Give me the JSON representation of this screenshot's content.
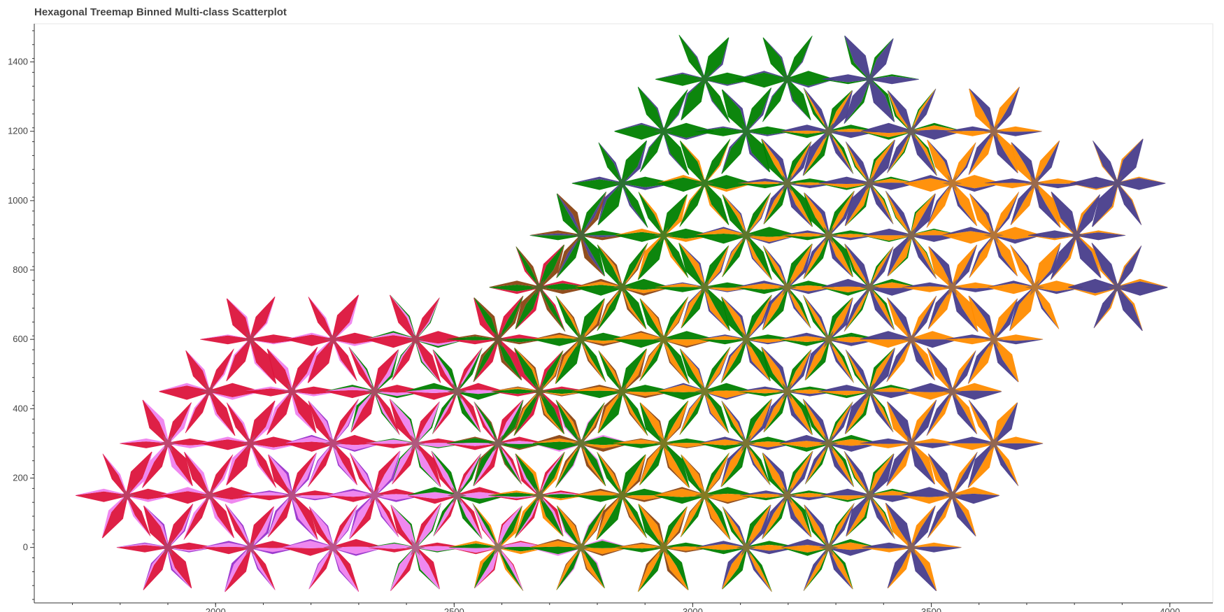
{
  "chart_data": {
    "type": "scatter",
    "title": "Hexagonal Treemap Binned Multi-class Scatterplot",
    "xlabel": "",
    "ylabel": "",
    "xlim": [
      1620,
      4090
    ],
    "ylim": [
      -160,
      1510
    ],
    "x_ticks": [
      2000,
      2500,
      3000,
      3500,
      4000
    ],
    "y_ticks": [
      0,
      200,
      400,
      600,
      800,
      1000,
      1200,
      1400
    ],
    "grid": false,
    "legend": "none",
    "hex_grid": {
      "x_spacing": 173.2,
      "row_height": 150,
      "y_scale": 0.5,
      "rows_start_y": 0,
      "rows": 10,
      "odd_row_x_offset": 86.6
    },
    "class_colors": {
      "A": "#dc143c",
      "B": "#ee82ee",
      "C": "#9932cc",
      "D": "#008000",
      "E": "#ff8c00",
      "F": "#483d8b",
      "G": "#8b4513"
    },
    "center_color_note": "center star color blends the class mix of each bin",
    "bins": [
      {
        "x": 1900,
        "y": 0,
        "mix": {
          "A": 0.75,
          "B": 0.15,
          "C": 0.1
        }
      },
      {
        "x": 2073,
        "y": 0,
        "mix": {
          "A": 0.55,
          "B": 0.3,
          "C": 0.15
        }
      },
      {
        "x": 2246,
        "y": 0,
        "mix": {
          "A": 0.45,
          "B": 0.45,
          "C": 0.1
        }
      },
      {
        "x": 2419,
        "y": 0,
        "mix": {
          "A": 0.35,
          "B": 0.55,
          "D": 0.1
        }
      },
      {
        "x": 2592,
        "y": 0,
        "mix": {
          "B": 0.35,
          "D": 0.35,
          "E": 0.2,
          "A": 0.1
        }
      },
      {
        "x": 2766,
        "y": 0,
        "mix": {
          "D": 0.45,
          "E": 0.35,
          "G": 0.1,
          "B": 0.1
        }
      },
      {
        "x": 2939,
        "y": 0,
        "mix": {
          "D": 0.4,
          "E": 0.45,
          "G": 0.15
        }
      },
      {
        "x": 3112,
        "y": 0,
        "mix": {
          "E": 0.45,
          "D": 0.3,
          "F": 0.25
        }
      },
      {
        "x": 3285,
        "y": 0,
        "mix": {
          "E": 0.45,
          "F": 0.35,
          "D": 0.2
        }
      },
      {
        "x": 3458,
        "y": 0,
        "mix": {
          "F": 0.6,
          "E": 0.4
        }
      },
      {
        "x": 1814,
        "y": 150,
        "mix": {
          "A": 0.8,
          "B": 0.2
        }
      },
      {
        "x": 1987,
        "y": 150,
        "mix": {
          "A": 0.75,
          "B": 0.25
        }
      },
      {
        "x": 2160,
        "y": 150,
        "mix": {
          "A": 0.5,
          "B": 0.35,
          "C": 0.15
        }
      },
      {
        "x": 2333,
        "y": 150,
        "mix": {
          "A": 0.4,
          "B": 0.45,
          "C": 0.15
        }
      },
      {
        "x": 2506,
        "y": 150,
        "mix": {
          "B": 0.4,
          "A": 0.3,
          "D": 0.3
        }
      },
      {
        "x": 2679,
        "y": 150,
        "mix": {
          "D": 0.45,
          "A": 0.2,
          "B": 0.15,
          "E": 0.2
        }
      },
      {
        "x": 2852,
        "y": 150,
        "mix": {
          "D": 0.5,
          "E": 0.35,
          "G": 0.15
        }
      },
      {
        "x": 3025,
        "y": 150,
        "mix": {
          "D": 0.4,
          "E": 0.5,
          "G": 0.1
        }
      },
      {
        "x": 3198,
        "y": 150,
        "mix": {
          "E": 0.45,
          "D": 0.25,
          "F": 0.3
        }
      },
      {
        "x": 3371,
        "y": 150,
        "mix": {
          "F": 0.5,
          "E": 0.35,
          "D": 0.15
        }
      },
      {
        "x": 3544,
        "y": 150,
        "mix": {
          "F": 0.6,
          "E": 0.4
        }
      },
      {
        "x": 1900,
        "y": 300,
        "mix": {
          "A": 0.7,
          "B": 0.3
        }
      },
      {
        "x": 2073,
        "y": 300,
        "mix": {
          "A": 0.8,
          "B": 0.2
        }
      },
      {
        "x": 2246,
        "y": 300,
        "mix": {
          "A": 0.6,
          "B": 0.3,
          "C": 0.1
        }
      },
      {
        "x": 2419,
        "y": 300,
        "mix": {
          "A": 0.45,
          "B": 0.45,
          "D": 0.1
        }
      },
      {
        "x": 2592,
        "y": 300,
        "mix": {
          "D": 0.35,
          "A": 0.3,
          "B": 0.25,
          "G": 0.1
        }
      },
      {
        "x": 2766,
        "y": 300,
        "mix": {
          "D": 0.5,
          "E": 0.2,
          "G": 0.2,
          "B": 0.1
        }
      },
      {
        "x": 2939,
        "y": 300,
        "mix": {
          "D": 0.45,
          "E": 0.45,
          "G": 0.1
        }
      },
      {
        "x": 3112,
        "y": 300,
        "mix": {
          "E": 0.45,
          "D": 0.35,
          "F": 0.2
        }
      },
      {
        "x": 3285,
        "y": 300,
        "mix": {
          "E": 0.4,
          "F": 0.35,
          "D": 0.25
        }
      },
      {
        "x": 3458,
        "y": 300,
        "mix": {
          "F": 0.55,
          "E": 0.45
        }
      },
      {
        "x": 3631,
        "y": 300,
        "mix": {
          "F": 0.5,
          "E": 0.5
        }
      },
      {
        "x": 1987,
        "y": 450,
        "mix": {
          "A": 0.85,
          "B": 0.15
        }
      },
      {
        "x": 2160,
        "y": 450,
        "mix": {
          "A": 0.8,
          "B": 0.2
        }
      },
      {
        "x": 2333,
        "y": 450,
        "mix": {
          "A": 0.6,
          "B": 0.25,
          "D": 0.15
        }
      },
      {
        "x": 2506,
        "y": 450,
        "mix": {
          "A": 0.4,
          "D": 0.35,
          "B": 0.25
        }
      },
      {
        "x": 2679,
        "y": 450,
        "mix": {
          "D": 0.5,
          "A": 0.25,
          "E": 0.15,
          "G": 0.1
        }
      },
      {
        "x": 2852,
        "y": 450,
        "mix": {
          "D": 0.55,
          "E": 0.3,
          "G": 0.15
        }
      },
      {
        "x": 3025,
        "y": 450,
        "mix": {
          "D": 0.45,
          "E": 0.45,
          "F": 0.1
        }
      },
      {
        "x": 3198,
        "y": 450,
        "mix": {
          "E": 0.45,
          "D": 0.3,
          "F": 0.25
        }
      },
      {
        "x": 3371,
        "y": 450,
        "mix": {
          "F": 0.45,
          "E": 0.35,
          "D": 0.2
        }
      },
      {
        "x": 3544,
        "y": 450,
        "mix": {
          "F": 0.55,
          "E": 0.45
        }
      },
      {
        "x": 2073,
        "y": 600,
        "mix": {
          "A": 0.9,
          "B": 0.1
        }
      },
      {
        "x": 2246,
        "y": 600,
        "mix": {
          "A": 0.85,
          "B": 0.15
        }
      },
      {
        "x": 2419,
        "y": 600,
        "mix": {
          "A": 0.75,
          "B": 0.15,
          "D": 0.1
        }
      },
      {
        "x": 2592,
        "y": 600,
        "mix": {
          "A": 0.4,
          "D": 0.4,
          "G": 0.2
        }
      },
      {
        "x": 2766,
        "y": 600,
        "mix": {
          "D": 0.6,
          "E": 0.25,
          "G": 0.15
        }
      },
      {
        "x": 2939,
        "y": 600,
        "mix": {
          "D": 0.5,
          "E": 0.4,
          "G": 0.1
        }
      },
      {
        "x": 3112,
        "y": 600,
        "mix": {
          "D": 0.45,
          "E": 0.4,
          "F": 0.15
        }
      },
      {
        "x": 3285,
        "y": 600,
        "mix": {
          "E": 0.45,
          "D": 0.3,
          "F": 0.25
        }
      },
      {
        "x": 3458,
        "y": 600,
        "mix": {
          "F": 0.5,
          "E": 0.5
        }
      },
      {
        "x": 3631,
        "y": 600,
        "mix": {
          "E": 0.65,
          "F": 0.35
        }
      },
      {
        "x": 2679,
        "y": 750,
        "mix": {
          "D": 0.5,
          "G": 0.3,
          "A": 0.2
        }
      },
      {
        "x": 2852,
        "y": 750,
        "mix": {
          "D": 0.65,
          "E": 0.2,
          "G": 0.15
        }
      },
      {
        "x": 3025,
        "y": 750,
        "mix": {
          "D": 0.55,
          "E": 0.35,
          "F": 0.1
        }
      },
      {
        "x": 3198,
        "y": 750,
        "mix": {
          "E": 0.45,
          "D": 0.35,
          "F": 0.2
        }
      },
      {
        "x": 3371,
        "y": 750,
        "mix": {
          "F": 0.45,
          "E": 0.35,
          "D": 0.2
        }
      },
      {
        "x": 3544,
        "y": 750,
        "mix": {
          "E": 0.6,
          "F": 0.4
        }
      },
      {
        "x": 3717,
        "y": 750,
        "mix": {
          "E": 0.8,
          "F": 0.2
        }
      },
      {
        "x": 3890,
        "y": 750,
        "mix": {
          "F": 0.85,
          "E": 0.15
        }
      },
      {
        "x": 2766,
        "y": 900,
        "mix": {
          "D": 0.5,
          "G": 0.3,
          "F": 0.2
        }
      },
      {
        "x": 2939,
        "y": 900,
        "mix": {
          "D": 0.75,
          "E": 0.25
        }
      },
      {
        "x": 3112,
        "y": 900,
        "mix": {
          "D": 0.6,
          "E": 0.3,
          "F": 0.1
        }
      },
      {
        "x": 3285,
        "y": 900,
        "mix": {
          "E": 0.4,
          "D": 0.35,
          "F": 0.25
        }
      },
      {
        "x": 3458,
        "y": 900,
        "mix": {
          "F": 0.5,
          "E": 0.4,
          "D": 0.1
        }
      },
      {
        "x": 3631,
        "y": 900,
        "mix": {
          "E": 0.75,
          "F": 0.25
        }
      },
      {
        "x": 3804,
        "y": 900,
        "mix": {
          "F": 0.8,
          "E": 0.2
        }
      },
      {
        "x": 2852,
        "y": 1050,
        "mix": {
          "D": 0.8,
          "F": 0.2
        }
      },
      {
        "x": 3025,
        "y": 1050,
        "mix": {
          "D": 0.85,
          "E": 0.15
        }
      },
      {
        "x": 3198,
        "y": 1050,
        "mix": {
          "D": 0.4,
          "E": 0.3,
          "F": 0.3
        }
      },
      {
        "x": 3371,
        "y": 1050,
        "mix": {
          "F": 0.55,
          "E": 0.3,
          "D": 0.15
        }
      },
      {
        "x": 3544,
        "y": 1050,
        "mix": {
          "E": 0.8,
          "F": 0.2
        }
      },
      {
        "x": 3717,
        "y": 1050,
        "mix": {
          "E": 0.55,
          "F": 0.45
        }
      },
      {
        "x": 3890,
        "y": 1050,
        "mix": {
          "F": 0.9,
          "E": 0.1
        }
      },
      {
        "x": 2939,
        "y": 1200,
        "mix": {
          "D": 0.9,
          "F": 0.1
        }
      },
      {
        "x": 3112,
        "y": 1200,
        "mix": {
          "D": 0.85,
          "F": 0.15
        }
      },
      {
        "x": 3285,
        "y": 1200,
        "mix": {
          "F": 0.45,
          "D": 0.3,
          "E": 0.25
        }
      },
      {
        "x": 3458,
        "y": 1200,
        "mix": {
          "F": 0.6,
          "E": 0.25,
          "D": 0.15
        }
      },
      {
        "x": 3631,
        "y": 1200,
        "mix": {
          "E": 0.55,
          "F": 0.45
        }
      },
      {
        "x": 3025,
        "y": 1350,
        "mix": {
          "D": 0.9,
          "F": 0.1
        }
      },
      {
        "x": 3198,
        "y": 1350,
        "mix": {
          "D": 0.9,
          "F": 0.1
        }
      },
      {
        "x": 3371,
        "y": 1350,
        "mix": {
          "F": 0.8,
          "D": 0.2
        }
      }
    ]
  }
}
